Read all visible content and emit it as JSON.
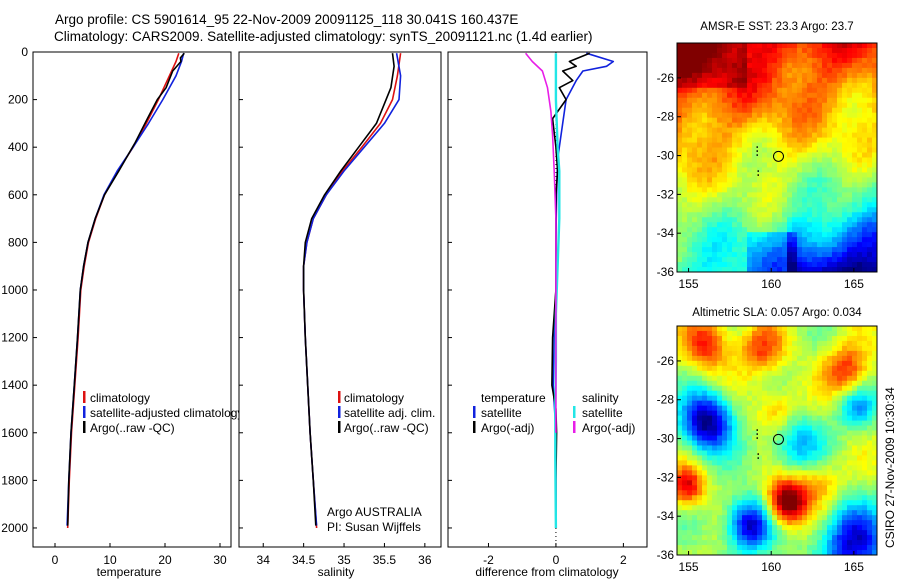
{
  "header": {
    "line1": "Argo profile: CS 5901614_95 22-Nov-2009 20091125_118 30.041S 160.437E",
    "line2": "Climatology: CARS2009. Satellite-adjusted climatology: synTS_20091121.nc (1.4d earlier)"
  },
  "side_text": "CSIRO 27-Nov-2009 10:30:34",
  "colors": {
    "climatology": "#dd1111",
    "satellite": "#1122dd",
    "argo": "#000000",
    "sal_satellite": "#22e6e6",
    "sal_argo": "#e81ee8"
  },
  "chart_data": [
    {
      "type": "line",
      "xlabel": "temperature",
      "ylabel": "",
      "xlim": [
        -4,
        32
      ],
      "ylim": [
        2080,
        0
      ],
      "x_ticks": [
        "0",
        "10",
        "20",
        "30"
      ],
      "y_ticks": [
        "0",
        "200",
        "400",
        "600",
        "800",
        "1000",
        "1200",
        "1400",
        "1600",
        "1800",
        "2000"
      ],
      "legend": [
        "climatology",
        "satellite-adjusted climatology",
        "Argo(..raw -QC)"
      ],
      "series": [
        {
          "name": "climatology",
          "color": "climatology",
          "points": [
            [
              22.5,
              5
            ],
            [
              22.0,
              40
            ],
            [
              20.8,
              100
            ],
            [
              18.8,
              200
            ],
            [
              16.6,
              300
            ],
            [
              14.2,
              400
            ],
            [
              11.4,
              500
            ],
            [
              9.0,
              600
            ],
            [
              7.4,
              700
            ],
            [
              6.1,
              800
            ],
            [
              5.3,
              900
            ],
            [
              4.7,
              1000
            ],
            [
              4.2,
              1200
            ],
            [
              3.6,
              1400
            ],
            [
              3.0,
              1600
            ],
            [
              2.6,
              1800
            ],
            [
              2.3,
              2000
            ]
          ]
        },
        {
          "name": "satellite-adjusted climatology",
          "color": "satellite",
          "points": [
            [
              23.4,
              5
            ],
            [
              23.0,
              40
            ],
            [
              22.0,
              100
            ],
            [
              19.6,
              200
            ],
            [
              17.0,
              300
            ],
            [
              14.2,
              400
            ],
            [
              11.3,
              500
            ],
            [
              8.9,
              600
            ],
            [
              7.3,
              700
            ],
            [
              6.0,
              800
            ],
            [
              5.2,
              900
            ],
            [
              4.6,
              1000
            ],
            [
              4.1,
              1200
            ],
            [
              3.5,
              1400
            ],
            [
              2.9,
              1600
            ],
            [
              2.5,
              1800
            ],
            [
              2.2,
              1990
            ]
          ]
        },
        {
          "name": "Argo(..raw -QC)",
          "color": "argo",
          "points": [
            [
              23.5,
              5
            ],
            [
              22.8,
              25
            ],
            [
              22.9,
              40
            ],
            [
              21.4,
              80
            ],
            [
              20.2,
              150
            ],
            [
              18.6,
              200
            ],
            [
              16.8,
              280
            ],
            [
              14.6,
              380
            ],
            [
              11.6,
              500
            ],
            [
              9.0,
              600
            ],
            [
              7.3,
              700
            ],
            [
              6.0,
              800
            ],
            [
              5.2,
              900
            ],
            [
              4.6,
              1000
            ],
            [
              4.1,
              1200
            ],
            [
              3.5,
              1400
            ],
            [
              2.9,
              1600
            ],
            [
              2.5,
              1800
            ],
            [
              2.3,
              1990
            ]
          ]
        }
      ]
    },
    {
      "type": "line",
      "xlabel": "salinity",
      "ylabel": "",
      "xlim": [
        33.7,
        36.2
      ],
      "ylim": [
        2080,
        0
      ],
      "x_ticks": [
        "34",
        "34.5",
        "35",
        "35.5",
        "36"
      ],
      "legend": [
        "climatology",
        "satellite adj. clim.",
        "Argo(..raw -QC)"
      ],
      "annotation": [
        "Argo AUSTRALIA",
        "PI: Susan Wijffels"
      ],
      "series": [
        {
          "name": "climatology",
          "color": "climatology",
          "points": [
            [
              35.7,
              5
            ],
            [
              35.66,
              100
            ],
            [
              35.6,
              200
            ],
            [
              35.45,
              300
            ],
            [
              35.22,
              400
            ],
            [
              34.98,
              500
            ],
            [
              34.78,
              600
            ],
            [
              34.62,
              700
            ],
            [
              34.54,
              800
            ],
            [
              34.5,
              900
            ],
            [
              34.5,
              1000
            ],
            [
              34.52,
              1200
            ],
            [
              34.55,
              1400
            ],
            [
              34.58,
              1600
            ],
            [
              34.62,
              1800
            ],
            [
              34.66,
              2000
            ]
          ]
        },
        {
          "name": "satellite adj. clim.",
          "color": "satellite",
          "points": [
            [
              35.65,
              5
            ],
            [
              35.7,
              100
            ],
            [
              35.68,
              200
            ],
            [
              35.5,
              300
            ],
            [
              35.25,
              400
            ],
            [
              35.0,
              500
            ],
            [
              34.78,
              600
            ],
            [
              34.62,
              700
            ],
            [
              34.54,
              800
            ],
            [
              34.5,
              900
            ],
            [
              34.5,
              1000
            ],
            [
              34.52,
              1200
            ],
            [
              34.55,
              1400
            ],
            [
              34.58,
              1600
            ],
            [
              34.62,
              1800
            ],
            [
              34.66,
              1990
            ]
          ]
        },
        {
          "name": "Argo(..raw -QC)",
          "color": "argo",
          "points": [
            [
              35.6,
              5
            ],
            [
              35.62,
              60
            ],
            [
              35.58,
              150
            ],
            [
              35.52,
              200
            ],
            [
              35.4,
              300
            ],
            [
              35.18,
              400
            ],
            [
              34.96,
              500
            ],
            [
              34.76,
              600
            ],
            [
              34.6,
              700
            ],
            [
              34.52,
              800
            ],
            [
              34.5,
              900
            ],
            [
              34.5,
              1000
            ],
            [
              34.52,
              1200
            ],
            [
              34.55,
              1400
            ],
            [
              34.58,
              1600
            ],
            [
              34.62,
              1800
            ],
            [
              34.65,
              1990
            ]
          ]
        }
      ]
    },
    {
      "type": "line",
      "xlabel": "difference from climatology",
      "ylabel": "",
      "xlim": [
        -3.2,
        2.7
      ],
      "ylim": [
        2080,
        0
      ],
      "x_ticks": [
        "-2",
        "0",
        "2"
      ],
      "legend_left_title": "temperature",
      "legend_left": [
        "satellite",
        "Argo(-adj)"
      ],
      "legend_right_title": "salinity",
      "legend_right": [
        "satellite",
        "Argo(-adj)"
      ],
      "series": [
        {
          "name": "temperature satellite",
          "color": "satellite",
          "points": [
            [
              0.9,
              5
            ],
            [
              1.7,
              40
            ],
            [
              1.5,
              60
            ],
            [
              0.8,
              80
            ],
            [
              0.6,
              120
            ],
            [
              0.3,
              200
            ],
            [
              0.2,
              300
            ],
            [
              0.05,
              450
            ],
            [
              0.02,
              600
            ],
            [
              0.0,
              800
            ],
            [
              0.0,
              1000
            ],
            [
              -0.05,
              1200
            ],
            [
              -0.08,
              1400
            ],
            [
              0.0,
              1600
            ],
            [
              0.0,
              1800
            ],
            [
              0.0,
              2000
            ]
          ]
        },
        {
          "name": "temperature Argo(-adj)",
          "color": "argo",
          "points": [
            [
              1.0,
              5
            ],
            [
              0.4,
              40
            ],
            [
              0.6,
              60
            ],
            [
              0.2,
              80
            ],
            [
              0.5,
              120
            ],
            [
              0.1,
              150
            ],
            [
              0.3,
              200
            ],
            [
              -0.1,
              280
            ],
            [
              0.0,
              400
            ],
            [
              0.05,
              500
            ],
            [
              0.0,
              600
            ],
            [
              0.0,
              800
            ],
            [
              0.0,
              1000
            ],
            [
              -0.1,
              1200
            ],
            [
              -0.12,
              1400
            ],
            [
              0.0,
              1500
            ],
            [
              0.02,
              1600
            ],
            [
              0.0,
              1800
            ],
            [
              0.0,
              2000
            ]
          ]
        },
        {
          "name": "salinity satellite",
          "color": "sal_satellite",
          "points": [
            [
              0.0,
              5
            ],
            [
              0.0,
              200
            ],
            [
              0.05,
              400
            ],
            [
              0.1,
              500
            ],
            [
              0.1,
              700
            ],
            [
              0.05,
              900
            ],
            [
              0.0,
              1100
            ],
            [
              0.0,
              1300
            ],
            [
              -0.02,
              1500
            ],
            [
              -0.02,
              1700
            ],
            [
              0.0,
              2000
            ]
          ]
        },
        {
          "name": "salinity Argo(-adj)",
          "color": "sal_argo",
          "points": [
            [
              -0.9,
              5
            ],
            [
              -0.7,
              40
            ],
            [
              -0.4,
              80
            ],
            [
              -0.25,
              150
            ],
            [
              -0.15,
              250
            ],
            [
              -0.1,
              350
            ],
            [
              -0.05,
              500
            ],
            [
              0.0,
              700
            ],
            [
              0.0,
              1000
            ],
            [
              0.0,
              1400
            ],
            [
              0.0,
              1600
            ]
          ]
        }
      ]
    },
    {
      "type": "heatmap",
      "title": "AMSR-E SST: 23.3 Argo: 23.7",
      "x_ticks": [
        "155",
        "160",
        "165"
      ],
      "y_ticks": [
        "-26",
        "-28",
        "-30",
        "-32",
        "-34",
        "-36"
      ],
      "xlim": [
        154.3,
        166.4
      ],
      "ylim": [
        -36,
        -24.2
      ],
      "marker": [
        160.44,
        -30.04
      ]
    },
    {
      "type": "heatmap",
      "title": "Altimetric SLA: 0.057 Argo: 0.034",
      "x_ticks": [
        "155",
        "160",
        "165"
      ],
      "y_ticks": [
        "-26",
        "-28",
        "-30",
        "-32",
        "-34",
        "-36"
      ],
      "xlim": [
        154.3,
        166.4
      ],
      "ylim": [
        -36,
        -24.2
      ],
      "marker": [
        160.44,
        -30.04
      ]
    }
  ]
}
